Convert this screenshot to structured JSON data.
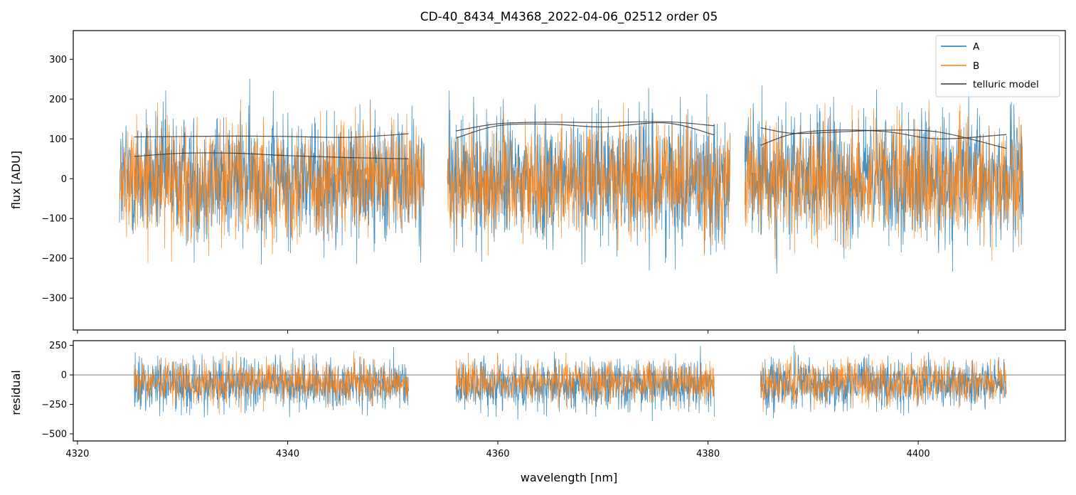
{
  "figure": {
    "title": "CD-40_8434_M4368_2022-04-06_02512  order 05",
    "xlabel": "wavelength [nm]"
  },
  "legend": {
    "placement": "top-right",
    "entries": [
      {
        "label": "A",
        "color": "#1f77b4"
      },
      {
        "label": "B",
        "color": "#ff7f0e"
      },
      {
        "label": "telluric model",
        "color": "#333333"
      }
    ]
  },
  "chart_data": [
    {
      "type": "line",
      "panel": "top",
      "ylabel": "flux [ADU]",
      "xlim": [
        4319.6,
        4414.0
      ],
      "ylim": [
        -380,
        372
      ],
      "xticks": [
        4320,
        4340,
        4360,
        4380,
        4400
      ],
      "yticks": [
        -300,
        -200,
        -100,
        0,
        100,
        200,
        300
      ],
      "grid": false,
      "segments_x": [
        [
          4324.0,
          4353.0
        ],
        [
          4355.2,
          4382.1
        ],
        [
          4383.5,
          4410.0
        ]
      ],
      "series": [
        {
          "name": "A",
          "color": "#1f77b4",
          "description_values": {
            "center_level": 0,
            "noise_amplitude": 150
          }
        },
        {
          "name": "B",
          "color": "#ff7f0e",
          "description_values": {
            "center_level": -5,
            "noise_amplitude": 130
          }
        },
        {
          "name": "telluric model",
          "color": "#333333",
          "curves": [
            {
              "x": [
                4325.4,
                4330,
                4335,
                4340,
                4346,
                4351.5
              ],
              "y": [
                105,
                106,
                107,
                106,
                104,
                113
              ]
            },
            {
              "x": [
                4325.4,
                4330,
                4335,
                4340,
                4346,
                4351.5
              ],
              "y": [
                56,
                64,
                64,
                58,
                53,
                50
              ]
            },
            {
              "x": [
                4356.0,
                4360,
                4365,
                4370,
                4376,
                4380.6
              ],
              "y": [
                120,
                138,
                142,
                141,
                143,
                133
              ]
            },
            {
              "x": [
                4356.0,
                4360,
                4365,
                4370,
                4376,
                4380.6
              ],
              "y": [
                102,
                133,
                137,
                130,
                140,
                110
              ]
            },
            {
              "x": [
                4385.0,
                4388,
                4392,
                4397,
                4402,
                4408.4
              ],
              "y": [
                128,
                114,
                117,
                122,
                117,
                76
              ]
            },
            {
              "x": [
                4385.0,
                4388,
                4392,
                4397,
                4402,
                4408.4
              ],
              "y": [
                84,
                112,
                122,
                118,
                100,
                111
              ]
            }
          ]
        }
      ]
    },
    {
      "type": "line",
      "panel": "bottom",
      "ylabel": "residual",
      "xlim": [
        4319.6,
        4414.0
      ],
      "ylim": [
        -560,
        290
      ],
      "xticks": [
        4320,
        4340,
        4360,
        4380,
        4400
      ],
      "yticks": [
        -500,
        -250,
        0,
        250
      ],
      "grid": false,
      "zero_line": 0,
      "segments_x": [
        [
          4325.4,
          4351.5
        ],
        [
          4356.0,
          4380.6
        ],
        [
          4385.0,
          4408.4
        ]
      ],
      "series": [
        {
          "name": "A",
          "color": "#1f77b4",
          "description_values": {
            "center_level": -80,
            "noise_amplitude": 200
          }
        },
        {
          "name": "B",
          "color": "#ff7f0e",
          "description_values": {
            "center_level": -60,
            "noise_amplitude": 160
          }
        }
      ]
    }
  ]
}
